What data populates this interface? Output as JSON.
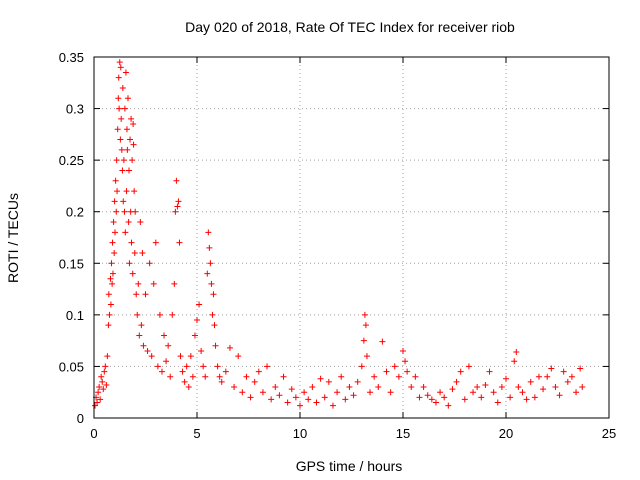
{
  "chart_data": {
    "type": "scatter",
    "title": "Day 020 of 2018, Rate Of TEC Index for receiver riob",
    "xlabel": "GPS time / hours",
    "ylabel": "ROTI / TECUs",
    "xlim": [
      0,
      25
    ],
    "ylim": [
      0,
      0.35
    ],
    "xticks": [
      0,
      5,
      10,
      15,
      20,
      25
    ],
    "xtick_labels": [
      "0",
      "5",
      "10",
      "15",
      "20",
      "25"
    ],
    "yticks": [
      0,
      0.05,
      0.1,
      0.15,
      0.2,
      0.25,
      0.3,
      0.35
    ],
    "ytick_labels": [
      "0",
      "0.05",
      "0.1",
      "0.15",
      "0.2",
      "0.25",
      "0.3",
      "0.35"
    ],
    "grid": true,
    "marker": "+",
    "color": "#ff0000",
    "series": [
      {
        "name": "ROTI",
        "points": [
          [
            0.05,
            0.012
          ],
          [
            0.1,
            0.02
          ],
          [
            0.15,
            0.015
          ],
          [
            0.2,
            0.025
          ],
          [
            0.25,
            0.03
          ],
          [
            0.3,
            0.018
          ],
          [
            0.35,
            0.04
          ],
          [
            0.4,
            0.035
          ],
          [
            0.45,
            0.028
          ],
          [
            0.5,
            0.045
          ],
          [
            0.55,
            0.05
          ],
          [
            0.6,
            0.032
          ],
          [
            0.65,
            0.06
          ],
          [
            0.7,
            0.09
          ],
          [
            0.72,
            0.12
          ],
          [
            0.75,
            0.1
          ],
          [
            0.8,
            0.135
          ],
          [
            0.82,
            0.11
          ],
          [
            0.85,
            0.15
          ],
          [
            0.88,
            0.13
          ],
          [
            0.9,
            0.17
          ],
          [
            0.92,
            0.14
          ],
          [
            0.95,
            0.19
          ],
          [
            0.98,
            0.16
          ],
          [
            1.0,
            0.21
          ],
          [
            1.02,
            0.18
          ],
          [
            1.05,
            0.23
          ],
          [
            1.08,
            0.2
          ],
          [
            1.1,
            0.25
          ],
          [
            1.12,
            0.22
          ],
          [
            1.15,
            0.28
          ],
          [
            1.18,
            0.31
          ],
          [
            1.2,
            0.33
          ],
          [
            1.22,
            0.3
          ],
          [
            1.25,
            0.345
          ],
          [
            1.28,
            0.27
          ],
          [
            1.3,
            0.34
          ],
          [
            1.32,
            0.29
          ],
          [
            1.35,
            0.26
          ],
          [
            1.38,
            0.24
          ],
          [
            1.4,
            0.32
          ],
          [
            1.42,
            0.21
          ],
          [
            1.45,
            0.25
          ],
          [
            1.48,
            0.2
          ],
          [
            1.5,
            0.3
          ],
          [
            1.52,
            0.18
          ],
          [
            1.55,
            0.335
          ],
          [
            1.58,
            0.22
          ],
          [
            1.6,
            0.28
          ],
          [
            1.62,
            0.26
          ],
          [
            1.65,
            0.31
          ],
          [
            1.68,
            0.19
          ],
          [
            1.7,
            0.24
          ],
          [
            1.72,
            0.15
          ],
          [
            1.75,
            0.27
          ],
          [
            1.78,
            0.2
          ],
          [
            1.8,
            0.29
          ],
          [
            1.82,
            0.17
          ],
          [
            1.85,
            0.25
          ],
          [
            1.88,
            0.14
          ],
          [
            1.9,
            0.285
          ],
          [
            1.92,
            0.265
          ],
          [
            1.95,
            0.22
          ],
          [
            1.98,
            0.16
          ],
          [
            2.0,
            0.2
          ],
          [
            2.05,
            0.12
          ],
          [
            2.1,
            0.1
          ],
          [
            2.15,
            0.13
          ],
          [
            2.2,
            0.08
          ],
          [
            2.25,
            0.19
          ],
          [
            2.3,
            0.09
          ],
          [
            2.35,
            0.16
          ],
          [
            2.4,
            0.07
          ],
          [
            2.5,
            0.12
          ],
          [
            2.6,
            0.065
          ],
          [
            2.7,
            0.15
          ],
          [
            2.8,
            0.06
          ],
          [
            2.9,
            0.13
          ],
          [
            3.0,
            0.17
          ],
          [
            3.1,
            0.05
          ],
          [
            3.2,
            0.1
          ],
          [
            3.3,
            0.045
          ],
          [
            3.4,
            0.08
          ],
          [
            3.5,
            0.055
          ],
          [
            3.6,
            0.07
          ],
          [
            3.7,
            0.04
          ],
          [
            3.8,
            0.1
          ],
          [
            3.9,
            0.13
          ],
          [
            3.95,
            0.2
          ],
          [
            4.0,
            0.23
          ],
          [
            4.05,
            0.205
          ],
          [
            4.1,
            0.21
          ],
          [
            4.15,
            0.17
          ],
          [
            4.2,
            0.06
          ],
          [
            4.3,
            0.045
          ],
          [
            4.4,
            0.035
          ],
          [
            4.5,
            0.05
          ],
          [
            4.6,
            0.03
          ],
          [
            4.7,
            0.06
          ],
          [
            4.8,
            0.04
          ],
          [
            4.9,
            0.08
          ],
          [
            5.0,
            0.095
          ],
          [
            5.1,
            0.11
          ],
          [
            5.2,
            0.065
          ],
          [
            5.3,
            0.05
          ],
          [
            5.4,
            0.04
          ],
          [
            5.5,
            0.14
          ],
          [
            5.55,
            0.18
          ],
          [
            5.6,
            0.165
          ],
          [
            5.65,
            0.15
          ],
          [
            5.7,
            0.13
          ],
          [
            5.75,
            0.1
          ],
          [
            5.8,
            0.12
          ],
          [
            5.85,
            0.09
          ],
          [
            5.9,
            0.07
          ],
          [
            6.0,
            0.05
          ],
          [
            6.1,
            0.04
          ],
          [
            6.2,
            0.035
          ],
          [
            6.4,
            0.045
          ],
          [
            6.6,
            0.068
          ],
          [
            6.8,
            0.03
          ],
          [
            7.0,
            0.06
          ],
          [
            7.2,
            0.025
          ],
          [
            7.4,
            0.04
          ],
          [
            7.6,
            0.02
          ],
          [
            7.8,
            0.035
          ],
          [
            8.0,
            0.045
          ],
          [
            8.2,
            0.025
          ],
          [
            8.4,
            0.05
          ],
          [
            8.6,
            0.018
          ],
          [
            8.8,
            0.03
          ],
          [
            9.0,
            0.022
          ],
          [
            9.2,
            0.04
          ],
          [
            9.4,
            0.015
          ],
          [
            9.6,
            0.028
          ],
          [
            9.8,
            0.02
          ],
          [
            10.0,
            0.012
          ],
          [
            10.2,
            0.025
          ],
          [
            10.4,
            0.018
          ],
          [
            10.6,
            0.03
          ],
          [
            10.8,
            0.015
          ],
          [
            11.0,
            0.038
          ],
          [
            11.2,
            0.02
          ],
          [
            11.4,
            0.035
          ],
          [
            11.6,
            0.012
          ],
          [
            11.8,
            0.025
          ],
          [
            12.0,
            0.04
          ],
          [
            12.2,
            0.018
          ],
          [
            12.4,
            0.03
          ],
          [
            12.6,
            0.022
          ],
          [
            12.8,
            0.035
          ],
          [
            13.0,
            0.05
          ],
          [
            13.1,
            0.075
          ],
          [
            13.15,
            0.1
          ],
          [
            13.2,
            0.09
          ],
          [
            13.25,
            0.06
          ],
          [
            13.4,
            0.025
          ],
          [
            13.6,
            0.04
          ],
          [
            13.8,
            0.03
          ],
          [
            14.0,
            0.074
          ],
          [
            14.2,
            0.045
          ],
          [
            14.4,
            0.025
          ],
          [
            14.6,
            0.05
          ],
          [
            14.8,
            0.04
          ],
          [
            15.0,
            0.065
          ],
          [
            15.1,
            0.055
          ],
          [
            15.2,
            0.045
          ],
          [
            15.4,
            0.03
          ],
          [
            15.6,
            0.04
          ],
          [
            15.8,
            0.02
          ],
          [
            16.0,
            0.03
          ],
          [
            16.2,
            0.022
          ],
          [
            16.4,
            0.018
          ],
          [
            16.6,
            0.015
          ],
          [
            16.8,
            0.025
          ],
          [
            17.0,
            0.02
          ],
          [
            17.2,
            0.012
          ],
          [
            17.4,
            0.028
          ],
          [
            17.6,
            0.035
          ],
          [
            17.8,
            0.045
          ],
          [
            18.0,
            0.018
          ],
          [
            18.2,
            0.05
          ],
          [
            18.4,
            0.025
          ],
          [
            18.6,
            0.03
          ],
          [
            18.8,
            0.02
          ],
          [
            19.0,
            0.032
          ],
          [
            19.2,
            0.045
          ],
          [
            19.4,
            0.025
          ],
          [
            19.6,
            0.015
          ],
          [
            19.8,
            0.03
          ],
          [
            20.0,
            0.038
          ],
          [
            20.2,
            0.02
          ],
          [
            20.4,
            0.055
          ],
          [
            20.5,
            0.064
          ],
          [
            20.6,
            0.03
          ],
          [
            20.8,
            0.025
          ],
          [
            21.0,
            0.018
          ],
          [
            21.2,
            0.035
          ],
          [
            21.4,
            0.02
          ],
          [
            21.6,
            0.04
          ],
          [
            21.8,
            0.028
          ],
          [
            22.0,
            0.04
          ],
          [
            22.2,
            0.048
          ],
          [
            22.4,
            0.03
          ],
          [
            22.6,
            0.022
          ],
          [
            22.8,
            0.045
          ],
          [
            23.0,
            0.035
          ],
          [
            23.2,
            0.04
          ],
          [
            23.4,
            0.025
          ],
          [
            23.6,
            0.048
          ],
          [
            23.7,
            0.03
          ]
        ]
      }
    ]
  }
}
